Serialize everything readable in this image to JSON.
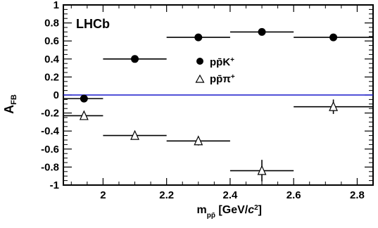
{
  "chart_data": {
    "type": "scatter",
    "xlim": [
      1.875,
      2.85
    ],
    "ylim": [
      -1.0,
      1.0
    ],
    "x_ticks": [
      "2",
      "2.2",
      "2.4",
      "2.6",
      "2.8"
    ],
    "y_ticks": [
      "-1",
      "-0.8",
      "-0.6",
      "-0.4",
      "-0.2",
      "0",
      "0.2",
      "0.4",
      "0.6",
      "0.8",
      "1"
    ],
    "xlabel": {
      "main": "m",
      "sub": "pp̄",
      "unit": " [GeV/",
      "unit_italic": "c",
      "unit_sup": "2",
      "unit_close": "]"
    },
    "ylabel": {
      "main": "A",
      "sub": "FB"
    },
    "annotation": "LHCb",
    "reference_line": {
      "y": 0,
      "color": "#1a1acc"
    },
    "series": [
      {
        "name": "pp̄K⁺",
        "legend_main": "pp̄K",
        "legend_sup": "+",
        "marker": "filled-circle",
        "points": [
          {
            "x": 1.94,
            "y": -0.04,
            "xlo": 1.875,
            "xhi": 2.0,
            "err": 0.02
          },
          {
            "x": 2.1,
            "y": 0.4,
            "xlo": 2.0,
            "xhi": 2.2,
            "err": 0.02
          },
          {
            "x": 2.3,
            "y": 0.64,
            "xlo": 2.2,
            "xhi": 2.4,
            "err": 0.02
          },
          {
            "x": 2.5,
            "y": 0.7,
            "xlo": 2.4,
            "xhi": 2.6,
            "err": 0.02
          },
          {
            "x": 2.725,
            "y": 0.64,
            "xlo": 2.6,
            "xhi": 2.85,
            "err": 0.02
          }
        ]
      },
      {
        "name": "pp̄π⁺",
        "legend_main": "pp̄π",
        "legend_sup": "+",
        "marker": "open-triangle",
        "points": [
          {
            "x": 1.94,
            "y": -0.23,
            "xlo": 1.875,
            "xhi": 2.0,
            "err": 0.02
          },
          {
            "x": 2.1,
            "y": -0.45,
            "xlo": 2.0,
            "xhi": 2.2,
            "err": 0.02
          },
          {
            "x": 2.3,
            "y": -0.51,
            "xlo": 2.2,
            "xhi": 2.4,
            "err": 0.05
          },
          {
            "x": 2.5,
            "y": -0.84,
            "xlo": 2.4,
            "xhi": 2.6,
            "err": 0.12
          },
          {
            "x": 2.725,
            "y": -0.13,
            "xlo": 2.6,
            "xhi": 2.85,
            "err": 0.08
          }
        ]
      }
    ]
  }
}
